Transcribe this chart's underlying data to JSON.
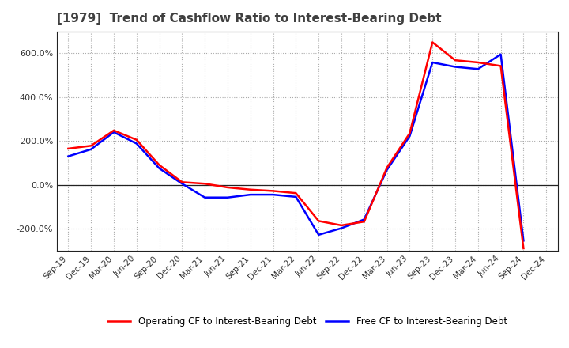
{
  "title": "[1979]  Trend of Cashflow Ratio to Interest-Bearing Debt",
  "x_labels": [
    "Sep-19",
    "Dec-19",
    "Mar-20",
    "Jun-20",
    "Sep-20",
    "Dec-20",
    "Mar-21",
    "Jun-21",
    "Sep-21",
    "Dec-21",
    "Mar-22",
    "Jun-22",
    "Sep-22",
    "Dec-22",
    "Mar-23",
    "Jun-23",
    "Sep-23",
    "Dec-23",
    "Mar-24",
    "Jun-24",
    "Sep-24",
    "Dec-24"
  ],
  "operating_cf": [
    165,
    178,
    248,
    205,
    90,
    12,
    5,
    -12,
    -22,
    -28,
    -38,
    -165,
    -185,
    -168,
    78,
    235,
    650,
    568,
    558,
    542,
    -290,
    null
  ],
  "free_cf": [
    130,
    162,
    240,
    188,
    75,
    5,
    -58,
    -58,
    -45,
    -45,
    -55,
    -228,
    -198,
    -158,
    68,
    222,
    558,
    538,
    528,
    595,
    -255,
    null
  ],
  "operating_color": "#ff0000",
  "free_color": "#0000ff",
  "background_color": "#ffffff",
  "plot_bg_color": "#ffffff",
  "grid_color": "#aaaaaa",
  "legend_operating": "Operating CF to Interest-Bearing Debt",
  "legend_free": "Free CF to Interest-Bearing Debt",
  "ylim": [
    -300,
    700
  ],
  "yticks": [
    -200,
    0,
    200,
    400,
    600
  ],
  "title_fontsize": 11,
  "title_color": "#404040",
  "line_width": 1.8
}
